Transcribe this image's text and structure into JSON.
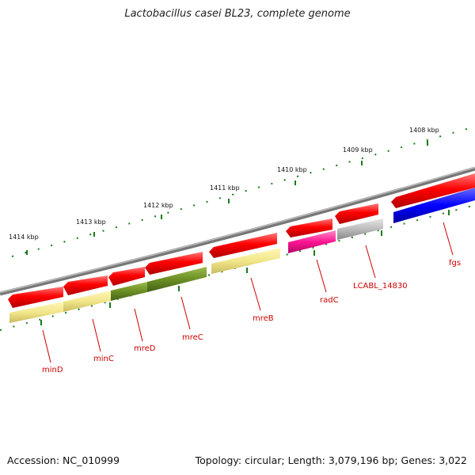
{
  "title": "Lactobacillus casei BL23, complete genome",
  "footer": {
    "accession": "Accession: NC_010999",
    "summary": "Topology: circular; Length: 3,079,196 bp; Genes: 3,022"
  },
  "scale_labels": [
    "1414 kbp",
    "1413 kbp",
    "1412 kbp",
    "1411 kbp",
    "1410 kbp",
    "1409 kbp",
    "1408 kbp"
  ],
  "gene_labels": [
    "minD",
    "minC",
    "mreD",
    "mreC",
    "mreB",
    "radC",
    "LCABL_14830",
    "fgs"
  ],
  "colors": {
    "backbone": "#888888",
    "cds": "#ff0000",
    "label": "#cc0000",
    "tick": "#1a7a1a",
    "cog_pale_yellow": "#f2e68a",
    "cog_olive": "#6b8e23",
    "cog_magenta": "#ff1493",
    "cog_gray": "#bbbbbb",
    "cog_blue": "#0000ff"
  }
}
